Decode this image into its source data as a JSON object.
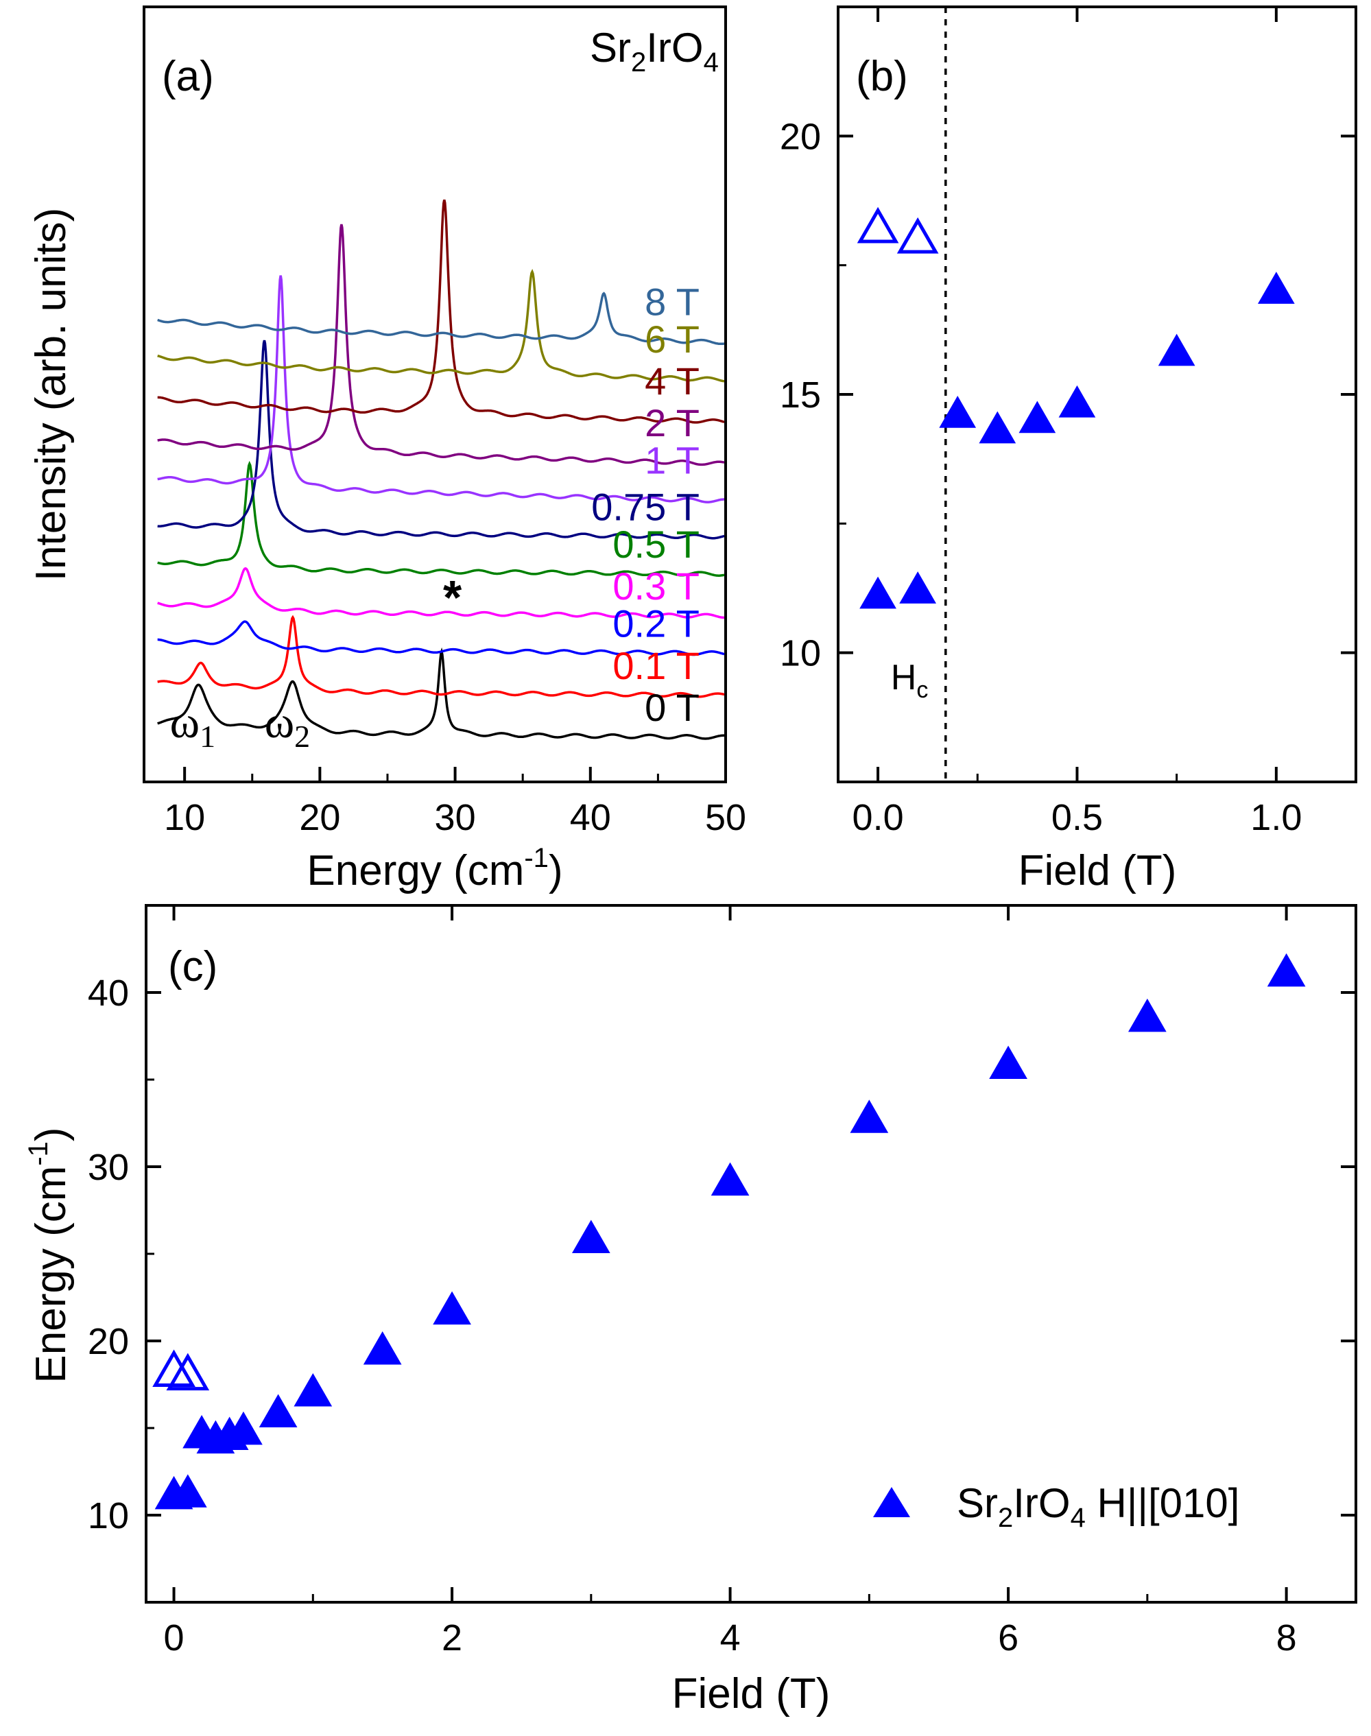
{
  "chart_data": [
    {
      "panel_label": "(a)",
      "type": "line",
      "title": "",
      "compound": {
        "base": "Sr",
        "sub1": "2",
        "mid": "IrO",
        "sub2": "4"
      },
      "xlabel": {
        "main": "Energy (cm",
        "sup": "-1",
        "end": ")"
      },
      "ylabel": "Intensity (arb. units)",
      "xlim": [
        7,
        50
      ],
      "xticks": [
        10,
        20,
        30,
        40,
        50
      ],
      "yticks_shown": false,
      "peak_labels": [
        {
          "text": "ω",
          "sub": "1",
          "x": 11.0
        },
        {
          "text": "ω",
          "sub": "2",
          "x": 18.0
        },
        {
          "text": "*",
          "x": 29.8
        }
      ],
      "series": [
        {
          "name": "0 T",
          "label": "0 T",
          "color": "#000000",
          "offset": 0.0,
          "peaks": [
            {
              "x": 11.0,
              "h": 0.9,
              "w": 1.5
            },
            {
              "x": 18.0,
              "h": 1.1,
              "w": 1.4
            },
            {
              "x": 29.0,
              "h": 1.8,
              "w": 0.6
            }
          ]
        },
        {
          "name": "0.1 T",
          "label": "0.1 T",
          "color": "#ff0000",
          "offset": 0.9,
          "peaks": [
            {
              "x": 11.2,
              "h": 0.45,
              "w": 1.2
            },
            {
              "x": 18.0,
              "h": 1.6,
              "w": 0.8
            }
          ]
        },
        {
          "name": "0.2 T",
          "label": "0.2 T",
          "color": "#0000ff",
          "offset": 1.8,
          "peaks": [
            {
              "x": 14.5,
              "h": 0.55,
              "w": 1.5
            }
          ]
        },
        {
          "name": "0.3 T",
          "label": "0.3 T",
          "color": "#ff00ff",
          "offset": 2.6,
          "peaks": [
            {
              "x": 14.5,
              "h": 0.9,
              "w": 1.2
            }
          ]
        },
        {
          "name": "0.5 T",
          "label": "0.5 T",
          "color": "#008000",
          "offset": 3.5,
          "peaks": [
            {
              "x": 14.8,
              "h": 2.2,
              "w": 0.8
            }
          ]
        },
        {
          "name": "0.75 T",
          "label": "0.75 T",
          "color": "#000080",
          "offset": 4.3,
          "peaks": [
            {
              "x": 15.9,
              "h": 4.1,
              "w": 0.8
            }
          ]
        },
        {
          "name": "1 T",
          "label": "1 T",
          "color": "#9933ff",
          "offset": 5.3,
          "peaks": [
            {
              "x": 17.1,
              "h": 4.5,
              "w": 0.7
            }
          ]
        },
        {
          "name": "2 T",
          "label": "2 T",
          "color": "#800080",
          "offset": 6.1,
          "peaks": [
            {
              "x": 21.6,
              "h": 4.9,
              "w": 0.8
            }
          ]
        },
        {
          "name": "4 T",
          "label": "4 T",
          "color": "#800000",
          "offset": 7.0,
          "peaks": [
            {
              "x": 29.2,
              "h": 4.6,
              "w": 0.8
            }
          ]
        },
        {
          "name": "6 T",
          "label": "6 T",
          "color": "#808000",
          "offset": 7.9,
          "peaks": [
            {
              "x": 35.7,
              "h": 2.2,
              "w": 0.8
            }
          ]
        },
        {
          "name": "8 T",
          "label": "8 T",
          "color": "#336699",
          "offset": 8.7,
          "peaks": [
            {
              "x": 41.0,
              "h": 1.0,
              "w": 0.8
            }
          ]
        }
      ]
    },
    {
      "panel_label": "(b)",
      "type": "scatter",
      "xlabel": "Field (T)",
      "ylabel": "",
      "xlim": [
        -0.1,
        1.2
      ],
      "ylim": [
        7.5,
        22.5
      ],
      "xticks": [
        0.0,
        0.5,
        1.0
      ],
      "xtick_labels": [
        "0.0",
        "0.5",
        "1.0"
      ],
      "yticks": [
        10,
        15,
        20
      ],
      "hc_line": {
        "x": 0.17,
        "label": "H",
        "sub": "c"
      },
      "series": [
        {
          "name": "open",
          "marker": "open-triangle",
          "color": "#0000ff",
          "x": [
            0.0,
            0.1
          ],
          "y": [
            18.2,
            18.0
          ]
        },
        {
          "name": "filled",
          "marker": "filled-triangle",
          "color": "#0000ff",
          "x": [
            0.0,
            0.1,
            0.2,
            0.3,
            0.4,
            0.5,
            0.75,
            1.0
          ],
          "y": [
            11.1,
            11.2,
            14.6,
            14.3,
            14.5,
            14.8,
            15.8,
            17.0
          ]
        }
      ]
    },
    {
      "panel_label": "(c)",
      "type": "scatter",
      "xlabel": "Field (T)",
      "ylabel": {
        "main": "Energy (cm",
        "sup": "-1",
        "end": ")"
      },
      "xlim": [
        -0.2,
        8.5
      ],
      "ylim": [
        5,
        45
      ],
      "xticks": [
        0,
        2,
        4,
        6,
        8
      ],
      "yticks": [
        10,
        20,
        30,
        40
      ],
      "legend": {
        "sr": "Sr",
        "sub1": "2",
        "mid": "IrO",
        "sub2": "4",
        "rest": " H||[010]",
        "position": "bottom-right"
      },
      "series": [
        {
          "name": "open",
          "marker": "open-triangle",
          "color": "#0000ff",
          "x": [
            0.0,
            0.1
          ],
          "y": [
            18.2,
            18.0
          ]
        },
        {
          "name": "filled",
          "marker": "filled-triangle",
          "color": "#0000ff",
          "x": [
            0.0,
            0.1,
            0.2,
            0.3,
            0.4,
            0.5,
            0.75,
            1.0,
            1.5,
            2.0,
            3.0,
            4.0,
            5.0,
            6.0,
            7.0,
            8.0
          ],
          "y": [
            11.1,
            11.2,
            14.6,
            14.3,
            14.5,
            14.8,
            15.8,
            17.0,
            19.4,
            21.7,
            25.8,
            29.1,
            32.7,
            35.8,
            38.5,
            41.1
          ]
        }
      ]
    }
  ]
}
